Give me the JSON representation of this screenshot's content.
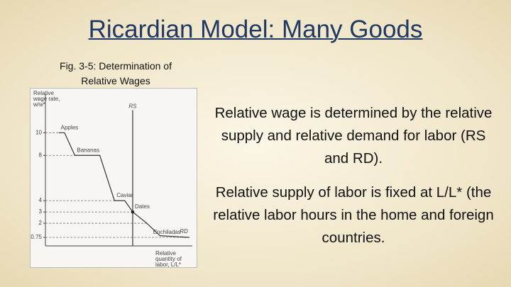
{
  "title": "Ricardian Model: Many Goods",
  "caption": "Fig. 3-5: Determination of Relative Wages",
  "figure": {
    "chart_data": {
      "type": "line",
      "y_label": "Relative wage rate, w/w*",
      "x_label": "Relative quantity of labor, L/L*",
      "ylim": [
        0,
        13.4
      ],
      "yticks": [
        0.75,
        2,
        3,
        4,
        8,
        10
      ],
      "xlim": [
        0,
        10
      ],
      "series": [
        {
          "name": "RD",
          "color": "#333333",
          "x": [
            0.9,
            1.3,
            2.0,
            3.7,
            4.7,
            5.4,
            5.94,
            6.9,
            7.8,
            9.8
          ],
          "values": [
            10,
            10,
            8,
            8,
            4,
            4,
            3,
            2,
            0.9,
            0.75
          ]
        },
        {
          "name": "RS",
          "color": "#333333",
          "x": [
            5.94,
            5.94
          ],
          "values": [
            0,
            12
          ]
        }
      ],
      "equilibrium": {
        "x": 5.94,
        "y": 3
      },
      "goods": [
        {
          "name": "Apples",
          "wage": 10
        },
        {
          "name": "Bananas",
          "wage": 8
        },
        {
          "name": "Caviar",
          "wage": 4
        },
        {
          "name": "Dates",
          "wage": 3
        },
        {
          "name": "Enchiladas",
          "wage": 0.75
        }
      ]
    }
  },
  "bullets": [
    "Relative wage is determined by the relative supply and relative demand for labor (RS and RD).",
    "Relative supply of labor is fixed at L/L* (the relative labor hours in the home and foreign countries."
  ]
}
